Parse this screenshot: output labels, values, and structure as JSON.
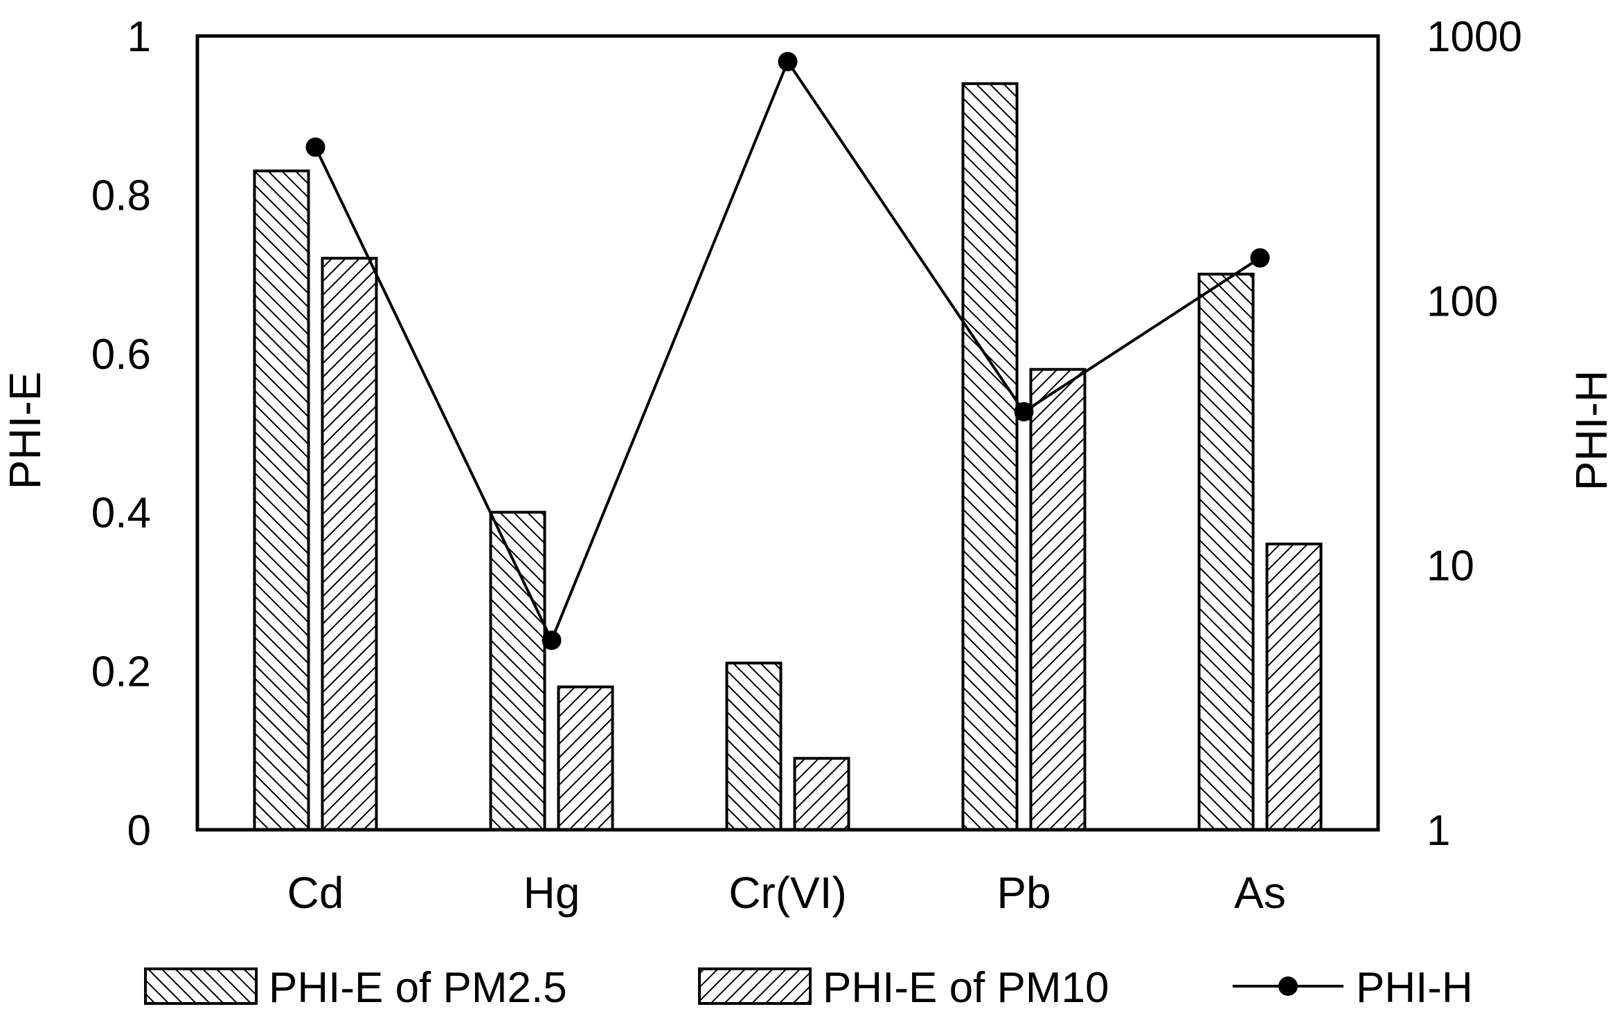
{
  "chart_data": {
    "type": "bar",
    "categories": [
      "Cd",
      "Hg",
      "Cr(VI)",
      "Pb",
      "As"
    ],
    "series": [
      {
        "name": "PHI-E of PM2.5",
        "type": "bar",
        "axis": "left",
        "pattern": "backslash-hatch",
        "values": [
          0.83,
          0.4,
          0.21,
          0.94,
          0.7
        ]
      },
      {
        "name": "PHI-E of PM10",
        "type": "bar",
        "axis": "left",
        "pattern": "slash-hatch",
        "values": [
          0.72,
          0.18,
          0.09,
          0.58,
          0.36
        ]
      },
      {
        "name": "PHI-H",
        "type": "line",
        "axis": "right",
        "marker": "circle",
        "values": [
          380,
          5.2,
          800,
          38,
          145
        ]
      }
    ],
    "y_left": {
      "label": "PHI-E",
      "range": [
        0,
        1
      ],
      "ticks": [
        "0",
        "0.2",
        "0.4",
        "0.6",
        "0.8",
        "1"
      ],
      "tick_values": [
        0,
        0.2,
        0.4,
        0.6,
        0.8,
        1
      ]
    },
    "y_right": {
      "label": "PHI-H",
      "scale": "log",
      "range": [
        1,
        1000
      ],
      "ticks": [
        "1",
        "10",
        "100",
        "1000"
      ],
      "tick_values": [
        1,
        10,
        100,
        1000
      ]
    },
    "grid": false,
    "legend_position": "bottom",
    "colors": {
      "ink": "#000000",
      "bar_fill": "#ffffff",
      "background": "#ffffff"
    }
  }
}
